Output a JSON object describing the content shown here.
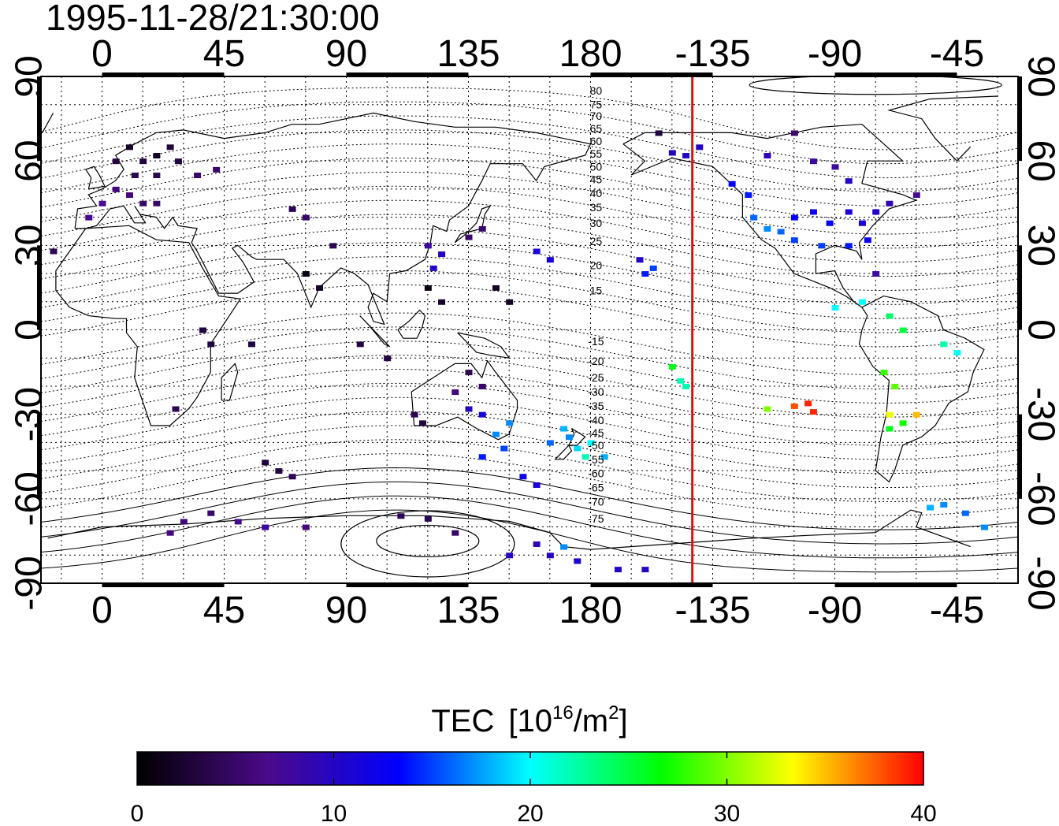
{
  "title": "1995-11-28/21:30:00",
  "colors": {
    "terminator": "#dd1111",
    "frame": "#000000",
    "coast": "#000000"
  },
  "map": {
    "x_tick_labels": [
      "0",
      "45",
      "90",
      "135",
      "180",
      "-135",
      "-90",
      "-45"
    ],
    "x_tick_lons": [
      0,
      45,
      90,
      135,
      180,
      225,
      270,
      315
    ],
    "y_tick_labels": [
      "90",
      "60",
      "30",
      "0",
      "-30",
      "-60",
      "-90"
    ],
    "y_tick_lats": [
      90,
      60,
      30,
      0,
      -30,
      -60,
      -90
    ],
    "lon_range": [
      -22.5,
      337.5
    ],
    "lat_range": [
      -90,
      90
    ],
    "grid_lon_step": 15,
    "grid_lat_step": 10,
    "terminator_lon": 217.5
  },
  "magnetic_lat_labels": [
    {
      "label": "80",
      "lat": 85
    },
    {
      "label": "75",
      "lat": 80
    },
    {
      "label": "70",
      "lat": 76
    },
    {
      "label": "65",
      "lat": 71.5
    },
    {
      "label": "60",
      "lat": 67
    },
    {
      "label": "55",
      "lat": 62.5
    },
    {
      "label": "50",
      "lat": 58
    },
    {
      "label": "45",
      "lat": 53.5
    },
    {
      "label": "40",
      "lat": 48.5
    },
    {
      "label": "35",
      "lat": 43.5
    },
    {
      "label": "30",
      "lat": 38
    },
    {
      "label": "25",
      "lat": 31.5
    },
    {
      "label": "20",
      "lat": 23
    },
    {
      "label": "15",
      "lat": 14
    },
    {
      "label": "-15",
      "lat": -4
    },
    {
      "label": "-20",
      "lat": -11
    },
    {
      "label": "-25",
      "lat": -17
    },
    {
      "label": "-30",
      "lat": -22
    },
    {
      "label": "-35",
      "lat": -27
    },
    {
      "label": "-40",
      "lat": -32
    },
    {
      "label": "-45",
      "lat": -36.5
    },
    {
      "label": "-50",
      "lat": -41
    },
    {
      "label": "-55",
      "lat": -46
    },
    {
      "label": "-60",
      "lat": -51
    },
    {
      "label": "-65",
      "lat": -56
    },
    {
      "label": "-70",
      "lat": -61
    },
    {
      "label": "-75",
      "lat": -67
    }
  ],
  "colorbar": {
    "label": "TEC",
    "unit_prefix": "[10",
    "unit_exp": "16",
    "unit_mid": "/m",
    "unit_exp2": "2",
    "unit_suffix": "]",
    "min": 0,
    "max": 40,
    "tick_labels": [
      "0",
      "10",
      "20",
      "30",
      "40"
    ],
    "tick_values": [
      0,
      10,
      20,
      30,
      40
    ],
    "stops": [
      "#000000",
      "#4a0a8a",
      "#0000ff",
      "#00ffff",
      "#00ff00",
      "#ffff00",
      "#ff0000"
    ]
  },
  "tec_data": [
    {
      "lon": 5,
      "lat": 60,
      "tec": 3
    },
    {
      "lon": 10,
      "lat": 65,
      "tec": 2
    },
    {
      "lon": 15,
      "lat": 60,
      "tec": 3
    },
    {
      "lon": 20,
      "lat": 62,
      "tec": 2
    },
    {
      "lon": 25,
      "lat": 65,
      "tec": 3
    },
    {
      "lon": 12,
      "lat": 55,
      "tec": 4
    },
    {
      "lon": 20,
      "lat": 55,
      "tec": 4
    },
    {
      "lon": 28,
      "lat": 60,
      "tec": 3
    },
    {
      "lon": 5,
      "lat": 50,
      "tec": 6
    },
    {
      "lon": 10,
      "lat": 48,
      "tec": 6
    },
    {
      "lon": 15,
      "lat": 45,
      "tec": 5
    },
    {
      "lon": -5,
      "lat": 40,
      "tec": 7
    },
    {
      "lon": 0,
      "lat": 45,
      "tec": 7
    },
    {
      "lon": 20,
      "lat": 45,
      "tec": 5
    },
    {
      "lon": 35,
      "lat": 55,
      "tec": 5
    },
    {
      "lon": 42,
      "lat": 57,
      "tec": 5
    },
    {
      "lon": -18,
      "lat": 28,
      "tec": 4
    },
    {
      "lon": 70,
      "lat": 43,
      "tec": 4
    },
    {
      "lon": 75,
      "lat": 40,
      "tec": 5
    },
    {
      "lon": 85,
      "lat": 30,
      "tec": 4
    },
    {
      "lon": 75,
      "lat": 20,
      "tec": 1
    },
    {
      "lon": 80,
      "lat": 15,
      "tec": 2
    },
    {
      "lon": 37,
      "lat": 0,
      "tec": 3
    },
    {
      "lon": 40,
      "lat": -5,
      "tec": 3
    },
    {
      "lon": 55,
      "lat": -5,
      "tec": 3
    },
    {
      "lon": 27,
      "lat": -28,
      "tec": 4
    },
    {
      "lon": 105,
      "lat": -10,
      "tec": 3
    },
    {
      "lon": 95,
      "lat": -5,
      "tec": 3
    },
    {
      "lon": 115,
      "lat": -30,
      "tec": 4
    },
    {
      "lon": 118,
      "lat": -33,
      "tec": 3
    },
    {
      "lon": 120,
      "lat": 30,
      "tec": 8
    },
    {
      "lon": 125,
      "lat": 27,
      "tec": 10
    },
    {
      "lon": 122,
      "lat": 22,
      "tec": 10
    },
    {
      "lon": 120,
      "lat": 15,
      "tec": 1
    },
    {
      "lon": 125,
      "lat": 10,
      "tec": 2
    },
    {
      "lon": 135,
      "lat": 33,
      "tec": 5
    },
    {
      "lon": 140,
      "lat": 36,
      "tec": 5
    },
    {
      "lon": 145,
      "lat": 15,
      "tec": 2
    },
    {
      "lon": 150,
      "lat": 10,
      "tec": 2
    },
    {
      "lon": 135,
      "lat": -15,
      "tec": 4
    },
    {
      "lon": 140,
      "lat": -20,
      "tec": 5
    },
    {
      "lon": 130,
      "lat": -22,
      "tec": 6
    },
    {
      "lon": 135,
      "lat": -28,
      "tec": 10
    },
    {
      "lon": 140,
      "lat": -30,
      "tec": 11
    },
    {
      "lon": 145,
      "lat": -37,
      "tec": 17
    },
    {
      "lon": 150,
      "lat": -33,
      "tec": 17
    },
    {
      "lon": 140,
      "lat": -45,
      "tec": 14
    },
    {
      "lon": 148,
      "lat": -42,
      "tec": 15
    },
    {
      "lon": 155,
      "lat": -52,
      "tec": 12
    },
    {
      "lon": 160,
      "lat": -55,
      "tec": 11
    },
    {
      "lon": 165,
      "lat": -40,
      "tec": 16
    },
    {
      "lon": 172,
      "lat": -38,
      "tec": 17
    },
    {
      "lon": 175,
      "lat": -42,
      "tec": 19
    },
    {
      "lon": 178,
      "lat": -45,
      "tec": 22
    },
    {
      "lon": 180,
      "lat": -40,
      "tec": 20
    },
    {
      "lon": 170,
      "lat": -35,
      "tec": 18
    },
    {
      "lon": 185,
      "lat": -45,
      "tec": 18
    },
    {
      "lon": 160,
      "lat": 28,
      "tec": 11
    },
    {
      "lon": 165,
      "lat": 25,
      "tec": 11
    },
    {
      "lon": 198,
      "lat": 25,
      "tec": 10
    },
    {
      "lon": 200,
      "lat": 20,
      "tec": 14
    },
    {
      "lon": 203,
      "lat": 22,
      "tec": 15
    },
    {
      "lon": 210,
      "lat": -13,
      "tec": 26
    },
    {
      "lon": 213,
      "lat": -18,
      "tec": 22
    },
    {
      "lon": 215,
      "lat": -20,
      "tec": 22
    },
    {
      "lon": 210,
      "lat": 63,
      "tec": 10
    },
    {
      "lon": 205,
      "lat": 70,
      "tec": 3
    },
    {
      "lon": 215,
      "lat": 62,
      "tec": 10
    },
    {
      "lon": 220,
      "lat": 65,
      "tec": 10
    },
    {
      "lon": 232,
      "lat": 52,
      "tec": 13
    },
    {
      "lon": 238,
      "lat": 48,
      "tec": 14
    },
    {
      "lon": 240,
      "lat": 40,
      "tec": 16
    },
    {
      "lon": 245,
      "lat": 36,
      "tec": 17
    },
    {
      "lon": 250,
      "lat": 35,
      "tec": 16
    },
    {
      "lon": 255,
      "lat": 32,
      "tec": 15
    },
    {
      "lon": 255,
      "lat": 40,
      "tec": 13
    },
    {
      "lon": 262,
      "lat": 42,
      "tec": 12
    },
    {
      "lon": 268,
      "lat": 38,
      "tec": 13
    },
    {
      "lon": 275,
      "lat": 42,
      "tec": 11
    },
    {
      "lon": 280,
      "lat": 38,
      "tec": 11
    },
    {
      "lon": 285,
      "lat": 42,
      "tec": 10
    },
    {
      "lon": 290,
      "lat": 45,
      "tec": 9
    },
    {
      "lon": 282,
      "lat": 32,
      "tec": 12
    },
    {
      "lon": 275,
      "lat": 30,
      "tec": 14
    },
    {
      "lon": 265,
      "lat": 30,
      "tec": 15
    },
    {
      "lon": 285,
      "lat": 20,
      "tec": 8
    },
    {
      "lon": 300,
      "lat": 48,
      "tec": 7
    },
    {
      "lon": 245,
      "lat": 62,
      "tec": 9
    },
    {
      "lon": 262,
      "lat": 60,
      "tec": 8
    },
    {
      "lon": 270,
      "lat": 58,
      "tec": 8
    },
    {
      "lon": 255,
      "lat": 70,
      "tec": 5
    },
    {
      "lon": 275,
      "lat": 53,
      "tec": 10
    },
    {
      "lon": 280,
      "lat": 10,
      "tec": 20
    },
    {
      "lon": 270,
      "lat": 8,
      "tec": 20
    },
    {
      "lon": 290,
      "lat": 5,
      "tec": 24
    },
    {
      "lon": 295,
      "lat": 0,
      "tec": 25
    },
    {
      "lon": 310,
      "lat": -5,
      "tec": 22
    },
    {
      "lon": 315,
      "lat": -8,
      "tec": 20
    },
    {
      "lon": 288,
      "lat": -15,
      "tec": 28
    },
    {
      "lon": 292,
      "lat": -20,
      "tec": 29
    },
    {
      "lon": 290,
      "lat": -30,
      "tec": 33
    },
    {
      "lon": 295,
      "lat": -33,
      "tec": 27
    },
    {
      "lon": 300,
      "lat": -30,
      "tec": 35
    },
    {
      "lon": 290,
      "lat": -35,
      "tec": 26
    },
    {
      "lon": 245,
      "lat": -28,
      "tec": 30
    },
    {
      "lon": 255,
      "lat": -27,
      "tec": 38
    },
    {
      "lon": 262,
      "lat": -29,
      "tec": 39
    },
    {
      "lon": 260,
      "lat": -26,
      "tec": 39
    },
    {
      "lon": 310,
      "lat": -62,
      "tec": 17
    },
    {
      "lon": 318,
      "lat": -65,
      "tec": 16
    },
    {
      "lon": 325,
      "lat": -70,
      "tec": 17
    },
    {
      "lon": 305,
      "lat": -63,
      "tec": 18
    },
    {
      "lon": 40,
      "lat": -65,
      "tec": 5
    },
    {
      "lon": 30,
      "lat": -68,
      "tec": 6
    },
    {
      "lon": 50,
      "lat": -68,
      "tec": 7
    },
    {
      "lon": 60,
      "lat": -70,
      "tec": 8
    },
    {
      "lon": 75,
      "lat": -70,
      "tec": 6
    },
    {
      "lon": 25,
      "lat": -72,
      "tec": 6
    },
    {
      "lon": 110,
      "lat": -66,
      "tec": 4
    },
    {
      "lon": 120,
      "lat": -67,
      "tec": 4
    },
    {
      "lon": 130,
      "lat": -72,
      "tec": 5
    },
    {
      "lon": 160,
      "lat": -76,
      "tec": 9
    },
    {
      "lon": 165,
      "lat": -80,
      "tec": 10
    },
    {
      "lon": 175,
      "lat": -82,
      "tec": 11
    },
    {
      "lon": 150,
      "lat": -80,
      "tec": 10
    },
    {
      "lon": 190,
      "lat": -85,
      "tec": 10
    },
    {
      "lon": 200,
      "lat": -85,
      "tec": 10
    },
    {
      "lon": 170,
      "lat": -77,
      "tec": 17
    },
    {
      "lon": 60,
      "lat": -47,
      "tec": 3
    },
    {
      "lon": 65,
      "lat": -50,
      "tec": 3
    },
    {
      "lon": 70,
      "lat": -52,
      "tec": 4
    }
  ]
}
